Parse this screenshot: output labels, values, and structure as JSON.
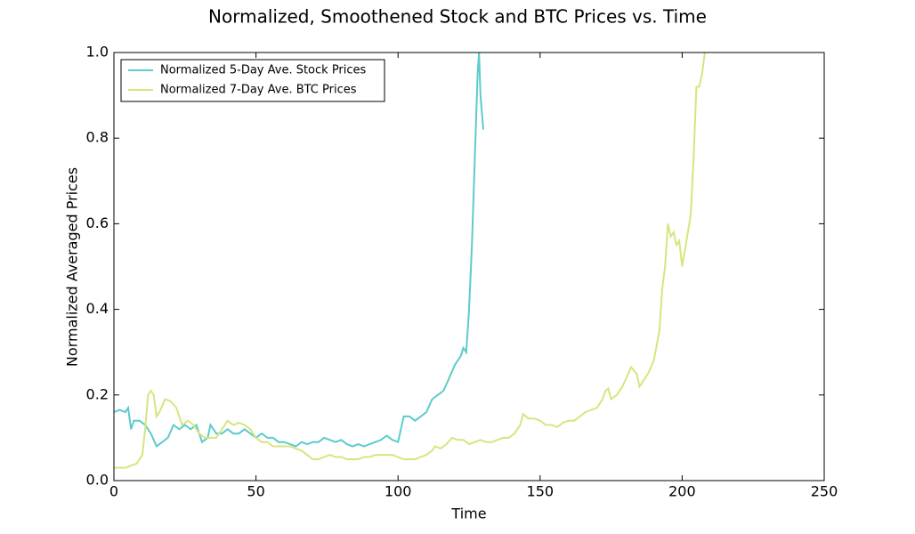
{
  "chart_data": {
    "type": "line",
    "title": "Normalized, Smoothened Stock and BTC Prices vs. Time",
    "x_label": "Time",
    "y_label": "Normalized Averaged Prices",
    "xlim": [
      0,
      250
    ],
    "xticks": [
      0,
      50,
      100,
      150,
      200,
      250
    ],
    "ylim": [
      0,
      1
    ],
    "yticks": [
      {
        "value": 0,
        "label": "0.0"
      },
      0.2,
      0.4,
      0.6,
      0.8,
      {
        "value": 1,
        "label": "1.0"
      }
    ],
    "legend": "upper left",
    "series": [
      {
        "name": "Normalized 5-Day Ave. Stock Prices",
        "color": "#5ccbcb",
        "x": [
          0,
          2,
          4,
          5,
          6,
          7,
          9,
          11,
          13,
          15,
          17,
          19,
          21,
          23,
          25,
          27,
          29,
          31,
          33,
          34,
          36,
          38,
          40,
          42,
          44,
          46,
          48,
          50,
          52,
          54,
          56,
          58,
          60,
          62,
          64,
          66,
          68,
          70,
          72,
          74,
          76,
          78,
          80,
          82,
          84,
          86,
          88,
          90,
          92,
          94,
          96,
          98,
          100,
          102,
          104,
          106,
          108,
          110,
          112,
          114,
          116,
          118,
          120,
          122,
          123,
          124,
          125,
          126,
          127,
          128,
          128.5,
          129,
          130
        ],
        "values": [
          0.16,
          0.165,
          0.16,
          0.17,
          0.12,
          0.14,
          0.14,
          0.13,
          0.11,
          0.08,
          0.09,
          0.1,
          0.13,
          0.12,
          0.13,
          0.12,
          0.13,
          0.09,
          0.1,
          0.13,
          0.11,
          0.11,
          0.12,
          0.11,
          0.11,
          0.12,
          0.11,
          0.1,
          0.11,
          0.1,
          0.1,
          0.09,
          0.09,
          0.085,
          0.08,
          0.09,
          0.085,
          0.09,
          0.09,
          0.1,
          0.095,
          0.09,
          0.095,
          0.085,
          0.08,
          0.085,
          0.08,
          0.085,
          0.09,
          0.095,
          0.105,
          0.095,
          0.09,
          0.15,
          0.15,
          0.14,
          0.15,
          0.16,
          0.19,
          0.2,
          0.21,
          0.24,
          0.27,
          0.29,
          0.31,
          0.3,
          0.4,
          0.55,
          0.75,
          0.95,
          1,
          0.9,
          0.82
        ]
      },
      {
        "name": "Normalized 7-Day Ave. BTC Prices",
        "color": "#d6e57f",
        "x": [
          0,
          2,
          4,
          6,
          8,
          10,
          11,
          12,
          13,
          14,
          15,
          16,
          18,
          20,
          22,
          24,
          26,
          28,
          30,
          32,
          34,
          36,
          38,
          40,
          42,
          44,
          46,
          48,
          50,
          52,
          54,
          56,
          58,
          60,
          62,
          64,
          66,
          68,
          70,
          72,
          74,
          76,
          78,
          80,
          82,
          84,
          86,
          88,
          90,
          92,
          94,
          96,
          98,
          100,
          102,
          104,
          106,
          108,
          110,
          112,
          113,
          115,
          117,
          119,
          121,
          123,
          125,
          127,
          129,
          131,
          133,
          135,
          137,
          139,
          141,
          143,
          144,
          146,
          148,
          150,
          152,
          154,
          156,
          158,
          160,
          162,
          164,
          166,
          168,
          170,
          172,
          173,
          174,
          175,
          177,
          179,
          181,
          182,
          184,
          185,
          186,
          188,
          190,
          192,
          193,
          194,
          195,
          196,
          197,
          198,
          199,
          200,
          201,
          202,
          203,
          204,
          205,
          206,
          207,
          208
        ],
        "values": [
          0.03,
          0.03,
          0.03,
          0.035,
          0.04,
          0.06,
          0.12,
          0.2,
          0.21,
          0.2,
          0.15,
          0.16,
          0.19,
          0.185,
          0.17,
          0.13,
          0.14,
          0.13,
          0.11,
          0.1,
          0.1,
          0.1,
          0.12,
          0.14,
          0.13,
          0.135,
          0.13,
          0.12,
          0.1,
          0.09,
          0.09,
          0.08,
          0.08,
          0.08,
          0.08,
          0.075,
          0.07,
          0.06,
          0.05,
          0.05,
          0.055,
          0.06,
          0.055,
          0.055,
          0.05,
          0.05,
          0.05,
          0.055,
          0.055,
          0.06,
          0.06,
          0.06,
          0.06,
          0.055,
          0.05,
          0.05,
          0.05,
          0.055,
          0.06,
          0.07,
          0.08,
          0.075,
          0.085,
          0.1,
          0.095,
          0.095,
          0.085,
          0.09,
          0.095,
          0.09,
          0.09,
          0.095,
          0.1,
          0.1,
          0.11,
          0.13,
          0.155,
          0.145,
          0.145,
          0.14,
          0.13,
          0.13,
          0.125,
          0.135,
          0.14,
          0.14,
          0.15,
          0.16,
          0.165,
          0.17,
          0.19,
          0.21,
          0.215,
          0.19,
          0.2,
          0.22,
          0.25,
          0.265,
          0.25,
          0.22,
          0.23,
          0.25,
          0.28,
          0.35,
          0.45,
          0.5,
          0.6,
          0.57,
          0.58,
          0.55,
          0.56,
          0.5,
          0.54,
          0.58,
          0.62,
          0.75,
          0.92,
          0.92,
          0.95,
          1
        ]
      }
    ]
  }
}
